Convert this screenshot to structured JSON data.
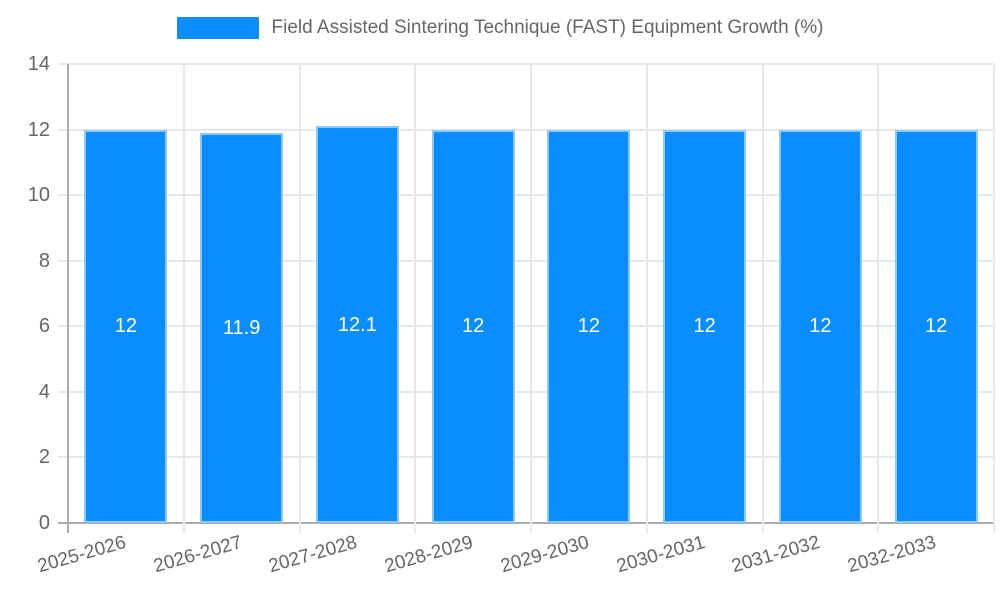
{
  "chart_data": {
    "type": "bar",
    "title": "Field Assisted Sintering Technique (FAST) Equipment Growth (%)",
    "xlabel": "",
    "ylabel": "",
    "categories": [
      "2025-2026",
      "2026-2027",
      "2027-2028",
      "2028-2029",
      "2029-2030",
      "2030-2031",
      "2031-2032",
      "2032-2033"
    ],
    "values": [
      12,
      11.9,
      12.1,
      12,
      12,
      12,
      12,
      12
    ],
    "bar_labels": [
      "12",
      "11.9",
      "12.1",
      "12",
      "12",
      "12",
      "12",
      "12"
    ],
    "ylim": [
      0,
      14
    ],
    "yticks": [
      0,
      2,
      4,
      6,
      8,
      10,
      12,
      14
    ],
    "grid": true,
    "legend_position": "top",
    "x_label_rotation_deg": -16,
    "colors": {
      "bar_fill": "#0A8DFF",
      "bar_border": "#8EC9FB",
      "bar_label_text": "#FFFFFF",
      "axis_line": "#ABABAB",
      "gridline": "#E8E8E8",
      "tick_text": "#666666",
      "legend_text": "#666666",
      "background": "#FFFFFF"
    }
  }
}
